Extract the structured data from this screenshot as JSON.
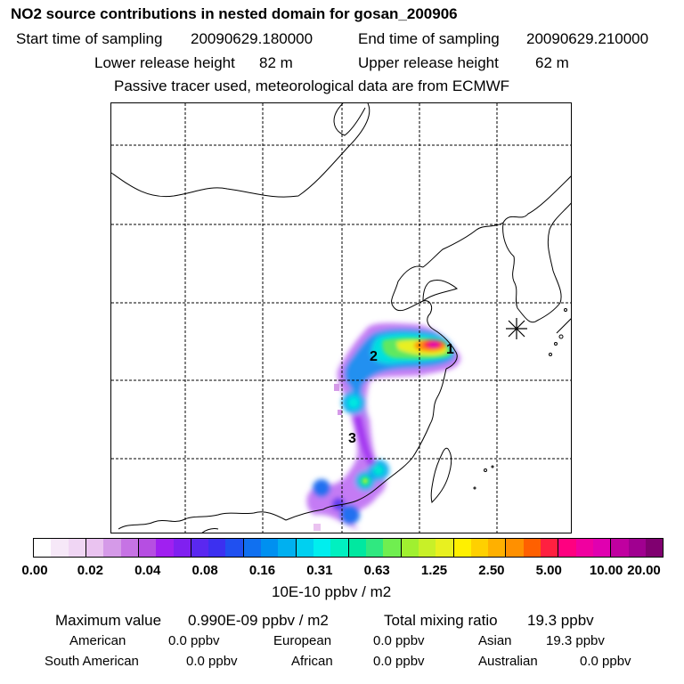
{
  "header": {
    "title": "NO2 source contributions in nested domain for gosan_200906",
    "start_label": "Start time of sampling",
    "start_value": "20090629.180000",
    "end_label": "End time of sampling",
    "end_value": "20090629.210000",
    "lower_label": "Lower release height",
    "lower_value": "82 m",
    "upper_label": "Upper release height",
    "upper_value": "62 m",
    "note": "Passive tracer used, meteorological data are from ECMWF"
  },
  "map": {
    "site_labels": [
      "1",
      "2",
      "3"
    ],
    "receptor_marker": "asterisk-icon"
  },
  "colorbar": {
    "tick_labels": [
      "0.00",
      "0.02",
      "0.04",
      "0.08",
      "0.16",
      "0.31",
      "0.63",
      "1.25",
      "2.50",
      "5.00",
      "10.00",
      "20.00"
    ],
    "colors": [
      "#ffffff",
      "#f6e8f8",
      "#f0d6f4",
      "#eac3f0",
      "#d59ae8",
      "#c673e4",
      "#b64ee2",
      "#a020f0",
      "#8020f0",
      "#5a28f0",
      "#3c30f0",
      "#2050f0",
      "#1070f0",
      "#0090f0",
      "#00b0f0",
      "#00d0f0",
      "#00eeee",
      "#00f0c0",
      "#00e8a0",
      "#30e880",
      "#70ee50",
      "#a0f030",
      "#c8f028",
      "#e8f020",
      "#fff000",
      "#ffd000",
      "#ffb000",
      "#ff9000",
      "#ff6000",
      "#ff2040",
      "#ff0080",
      "#f000a0",
      "#e000b0",
      "#c000a0",
      "#a00090",
      "#800070"
    ],
    "units": "10E-10 ppbv / m2"
  },
  "stats": {
    "max_label": "Maximum value",
    "max_value": "0.990E-09 ppbv / m2",
    "total_label": "Total mixing ratio",
    "total_value": "19.3 ppbv",
    "regions": [
      {
        "name": "American",
        "value": "0.0 ppbv"
      },
      {
        "name": "European",
        "value": "0.0 ppbv"
      },
      {
        "name": "Asian",
        "value": "19.3 ppbv"
      },
      {
        "name": "South American",
        "value": "0.0 ppbv"
      },
      {
        "name": "African",
        "value": "0.0 ppbv"
      },
      {
        "name": "Australian",
        "value": "0.0 ppbv"
      }
    ]
  }
}
